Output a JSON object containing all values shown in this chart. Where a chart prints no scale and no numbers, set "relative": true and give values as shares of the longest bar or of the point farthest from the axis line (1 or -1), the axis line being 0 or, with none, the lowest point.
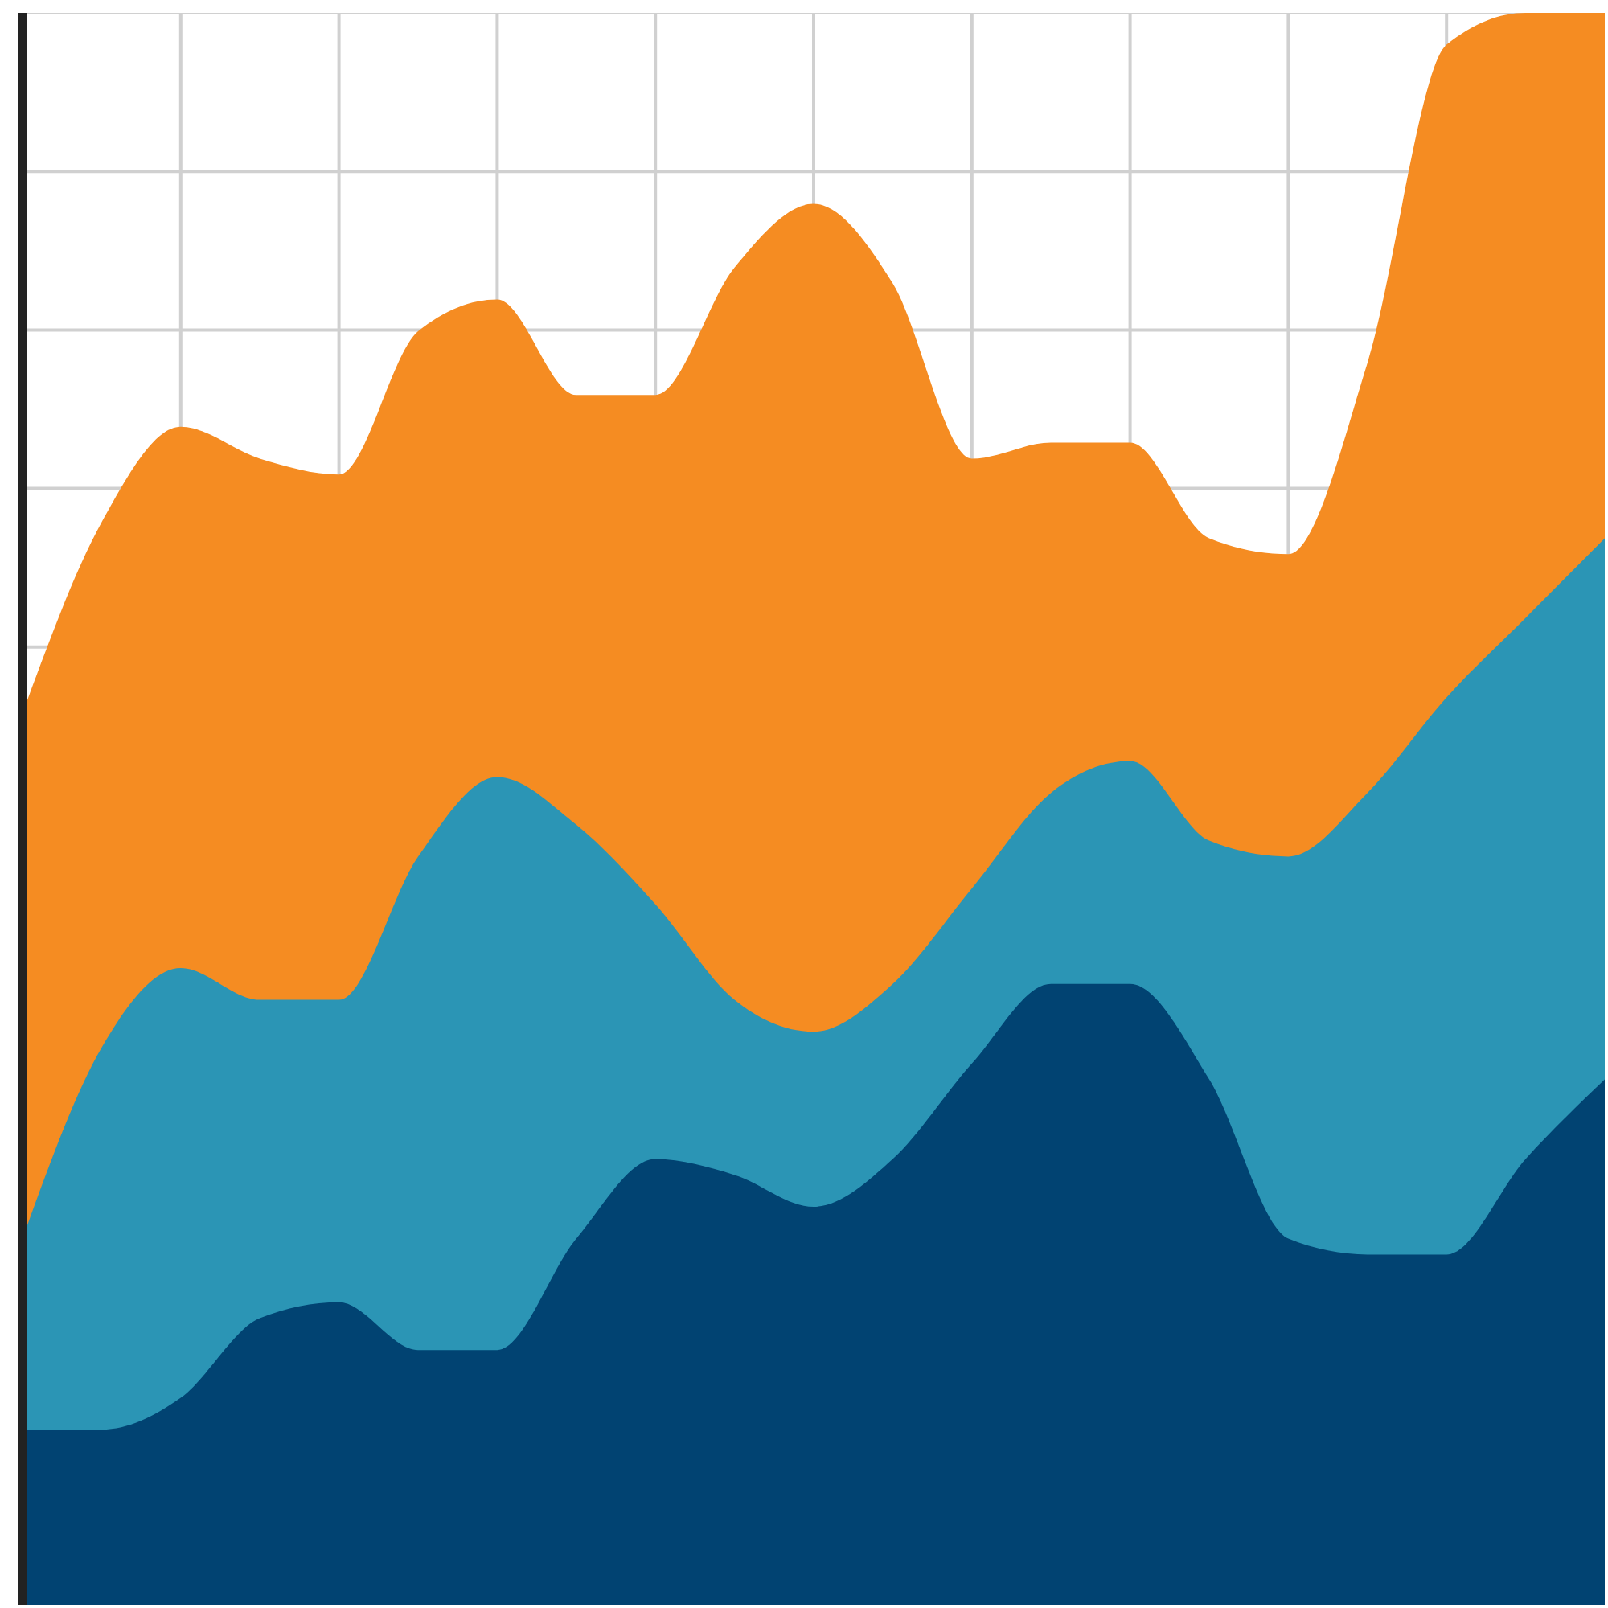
{
  "chart_data": {
    "type": "area",
    "relative": true,
    "grid": true,
    "categories": [
      null,
      null,
      null,
      null,
      null,
      null,
      null,
      null,
      null,
      null,
      null,
      null,
      null,
      null,
      null,
      null,
      null,
      null,
      null,
      null,
      null
    ],
    "series": [
      {
        "color": "#f58c22",
        "values": [
          0.56,
          0.68,
          0.74,
          0.72,
          0.71,
          0.8,
          0.82,
          0.76,
          0.76,
          0.84,
          0.88,
          0.83,
          0.72,
          0.73,
          0.73,
          0.67,
          0.66,
          0.78,
          0.98,
          1,
          1
        ]
      },
      {
        "color": "#2b95b5",
        "values": [
          0.23,
          0.35,
          0.4,
          0.38,
          0.38,
          0.47,
          0.52,
          0.49,
          0.44,
          0.38,
          0.36,
          0.39,
          0.45,
          0.51,
          0.53,
          0.48,
          0.47,
          0.51,
          0.57,
          0.62,
          0.67
        ]
      },
      {
        "color": "#014372",
        "values": [
          0.11,
          0.11,
          0.13,
          0.18,
          0.19,
          0.16,
          0.16,
          0.23,
          0.28,
          0.27,
          0.25,
          0.28,
          0.34,
          0.39,
          0.39,
          0.33,
          0.23,
          0.22,
          0.22,
          0.28,
          0.33
        ]
      }
    ]
  }
}
